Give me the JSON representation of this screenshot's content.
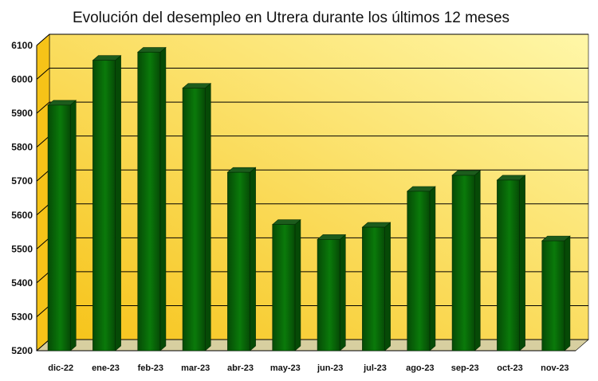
{
  "chart_data": {
    "type": "bar",
    "title": "Evolución del desempleo en Utrera durante los últimos 12 meses",
    "xlabel": "",
    "ylabel": "",
    "categories": [
      "dic-22",
      "ene-23",
      "feb-23",
      "mar-23",
      "abr-23",
      "may-23",
      "jun-23",
      "jul-23",
      "ago-23",
      "sep-23",
      "oct-23",
      "nov-23"
    ],
    "values": [
      5924,
      6056,
      6080,
      5974,
      5726,
      5572,
      5528,
      5564,
      5670,
      5717,
      5703,
      5524
    ],
    "ylim": [
      5200,
      6100
    ],
    "yticks": [
      5200,
      5300,
      5400,
      5500,
      5600,
      5700,
      5800,
      5900,
      6000,
      6100
    ],
    "grid": true,
    "bar_3d": true,
    "colors": {
      "bar_front": "#0a7a0a",
      "bar_side": "#064a06",
      "bar_top": "#1c5c1c",
      "wall_light": "#fff7a8",
      "wall_dark": "#f6c318",
      "gridline": "#000000"
    }
  }
}
